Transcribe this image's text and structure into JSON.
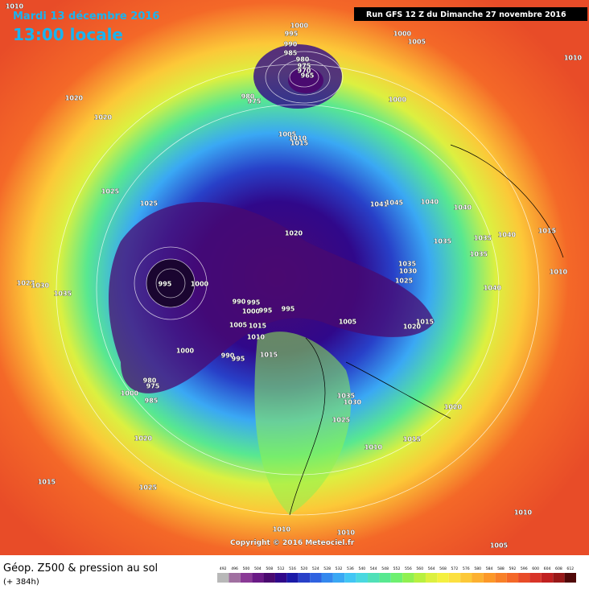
{
  "header": {
    "date": "Mardi 13 décembre 2016",
    "time": "13:00 locale",
    "run": "Run GFS 12 Z du Dimanche 27 novembre 2016"
  },
  "footer": {
    "title": "Géop. Z500 & pression au sol",
    "lead": "(+ 384h)",
    "copyright": "Copyright © 2016 Meteociel.fr"
  },
  "pressure_labels": [
    1010,
    1000,
    995,
    990,
    985,
    980,
    975,
    970,
    965,
    1000,
    1005,
    1010,
    1020,
    1020,
    980,
    975,
    1000,
    1005,
    1010,
    1015,
    1025,
    1025,
    1041,
    1045,
    1040,
    1040,
    1020,
    1035,
    1035,
    1040,
    1015,
    1035,
    1035,
    1030,
    1025,
    1010,
    1027,
    1030,
    995,
    1000,
    1035,
    1040,
    990,
    995,
    1000,
    995,
    995,
    1005,
    1015,
    1020,
    1005,
    1015,
    1010,
    1000,
    990,
    995,
    1015,
    980,
    975,
    1000,
    985,
    1035,
    1030,
    1025,
    1020,
    1010,
    1015,
    1020,
    1015,
    1025,
    1010,
    1010,
    1010,
    1005
  ],
  "legend": {
    "levels": [
      492,
      496,
      500,
      504,
      508,
      512,
      516,
      520,
      524,
      528,
      532,
      536,
      540,
      544,
      548,
      552,
      556,
      560,
      564,
      568,
      572,
      576,
      580,
      584,
      588,
      592,
      596,
      600,
      604,
      608,
      612
    ],
    "colors": [
      "#b8b8b8",
      "#a070a0",
      "#8a3a96",
      "#6a1a86",
      "#4a0a70",
      "#30088a",
      "#1a1aa8",
      "#2840c8",
      "#2f62e0",
      "#3488ee",
      "#3aa8f4",
      "#42c6f4",
      "#4ad8e0",
      "#50e0b8",
      "#58e890",
      "#6ef070",
      "#90f050",
      "#b8f040",
      "#dcf040",
      "#f4f040",
      "#fce040",
      "#fcc838",
      "#fcb030",
      "#fc9828",
      "#f88028",
      "#f46828",
      "#e84c28",
      "#d83428",
      "#c02020",
      "#981818",
      "#500808"
    ]
  }
}
